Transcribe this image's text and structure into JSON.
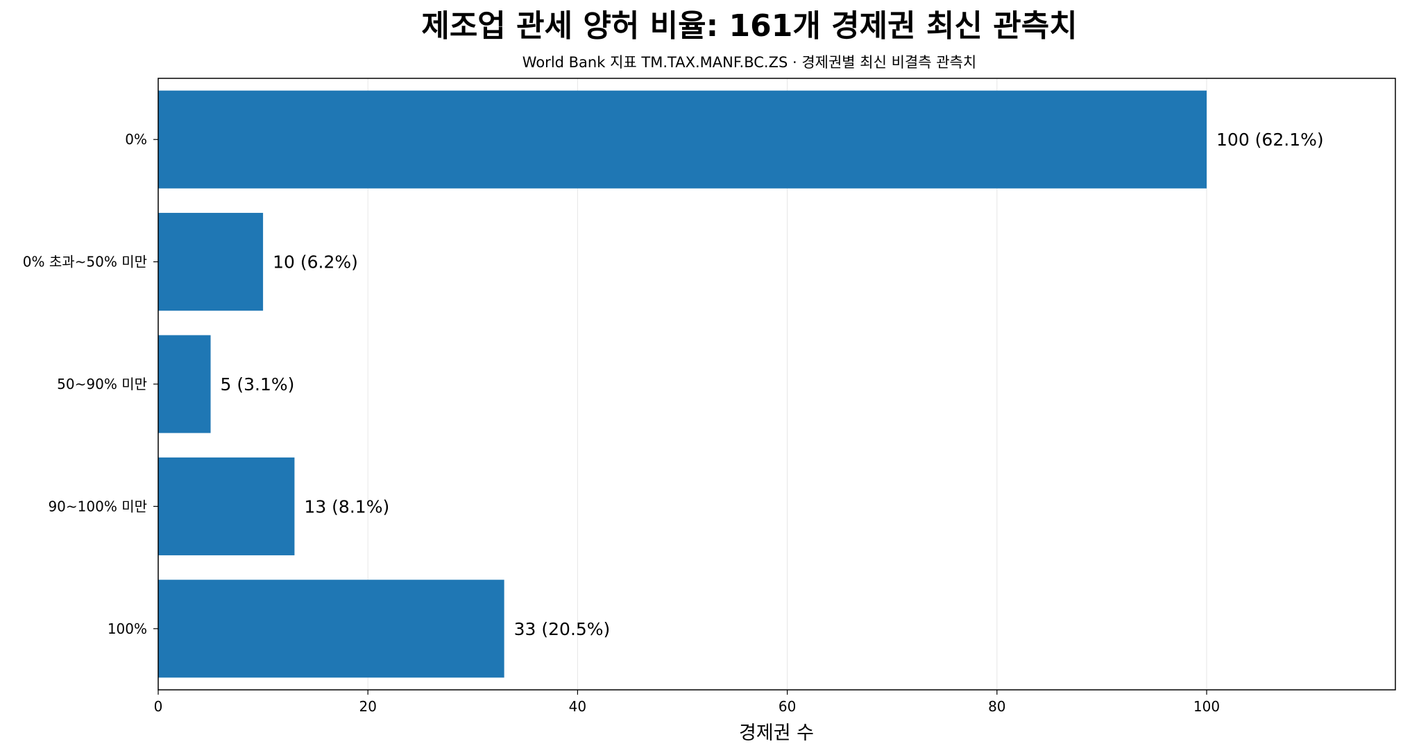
{
  "chart_data": {
    "type": "bar",
    "orientation": "horizontal",
    "title": "제조업 관세 양허 비율: 161개 경제권 최신 관측치",
    "subtitle": "World Bank 지표 TM.TAX.MANF.BC.ZS · 경제권별 최신 비결측 관측치",
    "xlabel": "경제권 수",
    "ylabel": "",
    "categories": [
      "0%",
      "0% 초과~50% 미만",
      "50~90% 미만",
      "90~100% 미만",
      "100%"
    ],
    "values": [
      100,
      10,
      5,
      13,
      33
    ],
    "data_labels": [
      "100 (62.1%)",
      "10 (6.2%)",
      "5 (3.1%)",
      "13 (8.1%)",
      "33 (20.5%)"
    ],
    "xlim": [
      0,
      118
    ],
    "xticks": [
      0,
      20,
      40,
      60,
      80,
      100
    ],
    "grid": "x",
    "legend": "none",
    "bar_color": "#1f77b4"
  }
}
